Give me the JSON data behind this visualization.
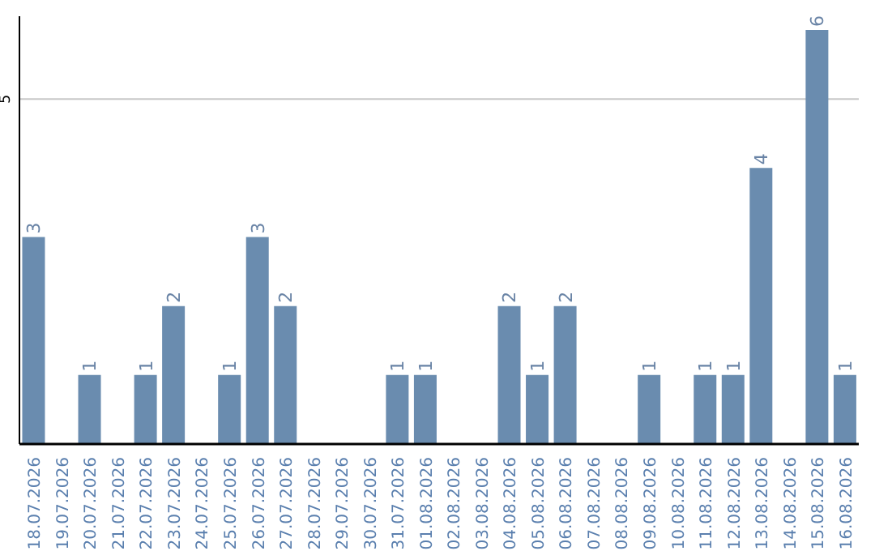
{
  "chart_data": {
    "type": "bar",
    "categories": [
      "18.07.2026",
      "19.07.2026",
      "20.07.2026",
      "21.07.2026",
      "22.07.2026",
      "23.07.2026",
      "24.07.2026",
      "25.07.2026",
      "26.07.2026",
      "27.07.2026",
      "28.07.2026",
      "29.07.2026",
      "30.07.2026",
      "31.07.2026",
      "01.08.2026",
      "02.08.2026",
      "03.08.2026",
      "04.08.2026",
      "05.08.2026",
      "06.08.2026",
      "07.08.2026",
      "08.08.2026",
      "09.08.2026",
      "10.08.2026",
      "11.08.2026",
      "12.08.2026",
      "13.08.2026",
      "14.08.2026",
      "15.08.2026",
      "16.08.2026"
    ],
    "values": [
      3,
      0,
      1,
      0,
      1,
      2,
      0,
      1,
      3,
      2,
      0,
      0,
      0,
      1,
      1,
      0,
      0,
      2,
      1,
      2,
      0,
      0,
      1,
      0,
      1,
      1,
      4,
      0,
      6,
      1
    ],
    "value_labels": [
      "3",
      null,
      "1",
      null,
      "1",
      "2",
      null,
      "1",
      "3",
      "2",
      null,
      null,
      null,
      "1",
      "1",
      null,
      null,
      "2",
      "1",
      "2",
      null,
      null,
      "1",
      null,
      "1",
      "1",
      "4",
      null,
      "6",
      "1"
    ],
    "color": "#6a8caf",
    "ylim": [
      0,
      6.2
    ],
    "yticks": [
      5
    ],
    "grid": "y",
    "legend": false
  }
}
